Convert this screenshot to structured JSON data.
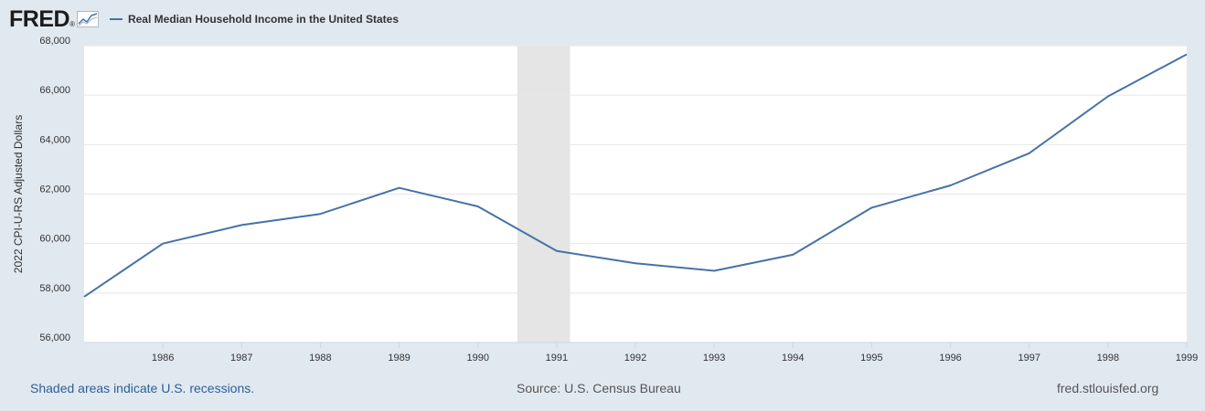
{
  "header": {
    "logo_text": "FRED",
    "logo_mark": "®",
    "legend_label": "Real Median Household Income in the United States"
  },
  "footer": {
    "recession_note": "Shaded areas indicate U.S. recessions.",
    "source": "Source: U.S. Census Bureau",
    "site": "fred.stlouisfed.org"
  },
  "colors": {
    "background": "#e1e9f0",
    "plot_background": "#ffffff",
    "series_line": "#4572a7",
    "recession_shade": "#e5e5e5"
  },
  "chart_data": {
    "type": "line",
    "title": "",
    "xlabel": "",
    "ylabel": "2022 CPI-U-RS Adjusted Dollars",
    "x": [
      1985,
      1986,
      1987,
      1988,
      1989,
      1990,
      1991,
      1992,
      1993,
      1994,
      1995,
      1996,
      1997,
      1998,
      1999
    ],
    "series": [
      {
        "name": "Real Median Household Income in the United States",
        "values": [
          57850,
          60000,
          60750,
          61200,
          62250,
          61500,
          59700,
          59200,
          58900,
          59550,
          61450,
          62350,
          63650,
          65950,
          67650
        ]
      }
    ],
    "xlim": [
      1985,
      1999
    ],
    "ylim": [
      56000,
      68000
    ],
    "x_ticks": [
      "1986",
      "1987",
      "1988",
      "1989",
      "1990",
      "1991",
      "1992",
      "1993",
      "1994",
      "1995",
      "1996",
      "1997",
      "1998",
      "1999"
    ],
    "y_ticks": [
      "56,000",
      "58,000",
      "60,000",
      "62,000",
      "64,000",
      "66,000",
      "68,000"
    ],
    "recessions": [
      {
        "start": 1990.5,
        "end": 1991.17
      }
    ],
    "grid": true,
    "legend_placement": "top-left"
  }
}
